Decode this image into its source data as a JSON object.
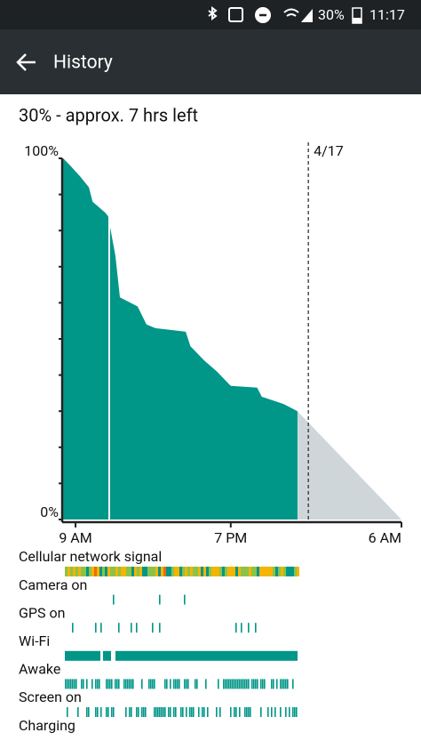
{
  "status_bar": {
    "battery": "30%",
    "time": "11:17"
  },
  "app_bar": {
    "title": "History"
  },
  "summary": "30% - approx. 7 hrs left",
  "chart_data": {
    "type": "area",
    "x": [
      8.2,
      8.66,
      9.29,
      9.86,
      10.1,
      10.9,
      11.1,
      11.57,
      11.86,
      13,
      13.57,
      14.14,
      16.1,
      16.4,
      17.3,
      18.1,
      19,
      20.7,
      21,
      22.4,
      23.3
    ],
    "values": [
      100,
      98,
      95,
      92,
      88,
      85,
      84,
      73,
      61.5,
      59,
      54,
      53,
      52,
      48,
      44,
      41,
      37,
      36.5,
      34,
      32,
      30
    ],
    "color": "#009688",
    "prediction": {
      "x": [
        23.3,
        30
      ],
      "values": [
        30,
        0
      ],
      "color": "#cfd6da"
    },
    "xlim": [
      8.14,
      30
    ],
    "xticks": [
      {
        "value": 9,
        "label": "9 AM"
      },
      {
        "value": 19,
        "label": "7 PM"
      },
      {
        "value": 30,
        "label": "6 AM"
      }
    ],
    "ylim": [
      0,
      100
    ],
    "yticks": [
      {
        "value": 0,
        "label": "0%"
      },
      {
        "value": 10,
        "label": null
      },
      {
        "value": 20,
        "label": null
      },
      {
        "value": 30,
        "label": null
      },
      {
        "value": 40,
        "label": null
      },
      {
        "value": 50,
        "label": null
      },
      {
        "value": 60,
        "label": null
      },
      {
        "value": 70,
        "label": null
      },
      {
        "value": 80,
        "label": null
      },
      {
        "value": 90,
        "label": null
      },
      {
        "value": 100,
        "label": "100%"
      }
    ],
    "annotation": {
      "x": 24,
      "label": "4/17"
    }
  },
  "events": [
    "Cellular network signal",
    "Camera on",
    "GPS on",
    "Wi-Fi",
    "Awake",
    "Screen on",
    "Charging"
  ]
}
